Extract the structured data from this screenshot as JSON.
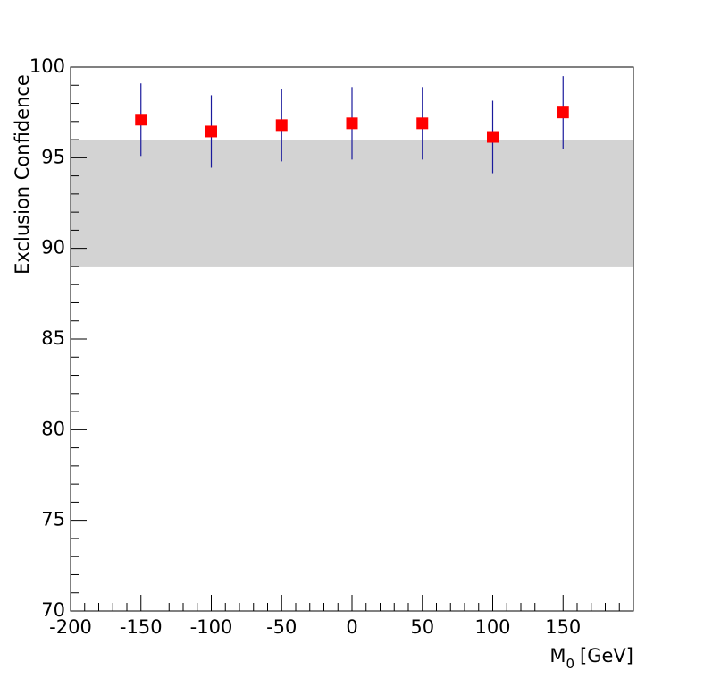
{
  "chart_data": {
    "type": "scatter",
    "ylabel": "Exclusion Confidence",
    "xlabel": {
      "base": "M",
      "sub": "0",
      "unit": "[GeV]"
    },
    "x": [
      -150,
      -100,
      -50,
      0,
      50,
      100,
      150
    ],
    "series": [
      {
        "color": "#ff0000",
        "error_color": "#1a1a9c",
        "values": [
          97.1,
          96.45,
          96.8,
          96.9,
          96.9,
          96.15,
          97.5
        ],
        "errors": [
          2.0,
          2.0,
          2.0,
          2.0,
          2.0,
          2.0,
          2.0
        ]
      }
    ],
    "band": [
      89,
      96
    ],
    "band_color": "#d3d3d3",
    "xlim": [
      -200,
      200
    ],
    "xticks": [
      -200,
      -150,
      -100,
      -50,
      0,
      50,
      100,
      150
    ],
    "ylim": [
      70,
      100
    ],
    "yticks": [
      70,
      75,
      80,
      85,
      90,
      95,
      100
    ]
  }
}
